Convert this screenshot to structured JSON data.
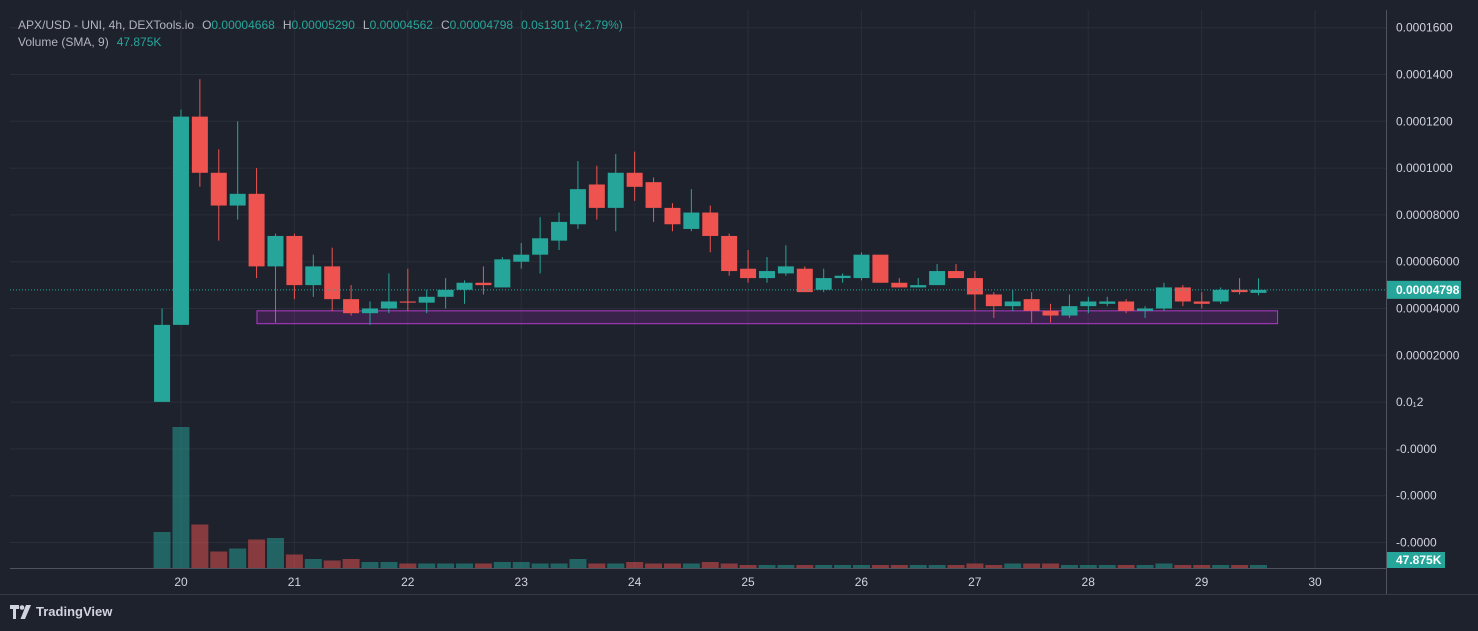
{
  "legend": {
    "symbol": "APX/USD - UNI, 4h, DEXTools.io",
    "o_label": "O",
    "o_value": "0.00004668",
    "h_label": "H",
    "h_value": "0.00005290",
    "l_label": "L",
    "l_value": "0.00004562",
    "c_label": "C",
    "c_value": "0.00004798",
    "change": "0.0s1301 (+2.79%)",
    "volume_label": "Volume (SMA, 9)",
    "volume_value": "47.875K"
  },
  "brand": {
    "name": "TradingView"
  },
  "price_axis": {
    "ticks": [
      "0.0001600",
      "0.0001400",
      "0.0001200",
      "0.0001000",
      "0.00008000",
      "0.00006000",
      "0.00004000",
      "0.00002000",
      "0.0₁2",
      "-0.0000",
      "-0.0000",
      "-0.0000"
    ],
    "last_price_label": "0.00004798",
    "volume_label": "47.875K"
  },
  "time_axis": {
    "ticks": [
      "20",
      "21",
      "22",
      "23",
      "24",
      "25",
      "26",
      "27",
      "28",
      "29",
      "30"
    ]
  },
  "colors": {
    "up": "#26a69a",
    "down": "#ef5350",
    "background": "#1e222d",
    "grid": "#2a2e39",
    "zone_fill": "#9c27b0",
    "zone_border": "#b03cc9"
  },
  "chart_data": {
    "type": "candlestick",
    "title": "APX/USD - UNI, 4h, DEXTools.io",
    "x_start_day": 19.833,
    "bar_interval_days": 0.1667,
    "ylim": [
      -7e-05,
      0.00017
    ],
    "candles": [
      {
        "o": 1e-07,
        "h": 4e-05,
        "l": 1e-07,
        "c": 3.3e-05
      },
      {
        "o": 3.3e-05,
        "h": 0.000125,
        "l": 3.3e-05,
        "c": 0.000122
      },
      {
        "o": 0.000122,
        "h": 0.000138,
        "l": 9.2e-05,
        "c": 9.8e-05
      },
      {
        "o": 9.8e-05,
        "h": 0.000108,
        "l": 6.9e-05,
        "c": 8.4e-05
      },
      {
        "o": 8.4e-05,
        "h": 0.00012,
        "l": 7.8e-05,
        "c": 8.9e-05
      },
      {
        "o": 8.9e-05,
        "h": 0.0001,
        "l": 5.3e-05,
        "c": 5.8e-05
      },
      {
        "o": 5.8e-05,
        "h": 7.2e-05,
        "l": 3.4e-05,
        "c": 7.1e-05
      },
      {
        "o": 7.1e-05,
        "h": 7.2e-05,
        "l": 4.4e-05,
        "c": 5e-05
      },
      {
        "o": 5e-05,
        "h": 6.3e-05,
        "l": 4.5e-05,
        "c": 5.8e-05
      },
      {
        "o": 5.8e-05,
        "h": 6.6e-05,
        "l": 3.9e-05,
        "c": 4.4e-05
      },
      {
        "o": 4.4e-05,
        "h": 5e-05,
        "l": 3.7e-05,
        "c": 3.8e-05
      },
      {
        "o": 3.8e-05,
        "h": 4.3e-05,
        "l": 3.3e-05,
        "c": 4e-05
      },
      {
        "o": 4e-05,
        "h": 5.5e-05,
        "l": 3.8e-05,
        "c": 4.3e-05
      },
      {
        "o": 4.3e-05,
        "h": 5.7e-05,
        "l": 3.9e-05,
        "c": 4.25e-05
      },
      {
        "o": 4.25e-05,
        "h": 4.8e-05,
        "l": 3.8e-05,
        "c": 4.5e-05
      },
      {
        "o": 4.5e-05,
        "h": 5.3e-05,
        "l": 4e-05,
        "c": 4.8e-05
      },
      {
        "o": 4.8e-05,
        "h": 5.2e-05,
        "l": 4.2e-05,
        "c": 5.1e-05
      },
      {
        "o": 5.1e-05,
        "h": 5.8e-05,
        "l": 4.6e-05,
        "c": 5e-05
      },
      {
        "o": 4.9e-05,
        "h": 6.2e-05,
        "l": 4.9e-05,
        "c": 6.1e-05
      },
      {
        "o": 6e-05,
        "h": 6.8e-05,
        "l": 5.7e-05,
        "c": 6.3e-05
      },
      {
        "o": 6.3e-05,
        "h": 7.9e-05,
        "l": 5.5e-05,
        "c": 7e-05
      },
      {
        "o": 6.9e-05,
        "h": 8.1e-05,
        "l": 6.5e-05,
        "c": 7.7e-05
      },
      {
        "o": 7.6e-05,
        "h": 0.000103,
        "l": 7.4e-05,
        "c": 9.1e-05
      },
      {
        "o": 9.3e-05,
        "h": 0.000101,
        "l": 7.8e-05,
        "c": 8.3e-05
      },
      {
        "o": 8.3e-05,
        "h": 0.000106,
        "l": 7.3e-05,
        "c": 9.8e-05
      },
      {
        "o": 9.8e-05,
        "h": 0.000107,
        "l": 8.6e-05,
        "c": 9.2e-05
      },
      {
        "o": 9.4e-05,
        "h": 9.6e-05,
        "l": 7.7e-05,
        "c": 8.3e-05
      },
      {
        "o": 8.3e-05,
        "h": 8.5e-05,
        "l": 7.3e-05,
        "c": 7.6e-05
      },
      {
        "o": 7.4e-05,
        "h": 9.1e-05,
        "l": 7.3e-05,
        "c": 8.1e-05
      },
      {
        "o": 8.1e-05,
        "h": 8.4e-05,
        "l": 6.4e-05,
        "c": 7.1e-05
      },
      {
        "o": 7.1e-05,
        "h": 7.2e-05,
        "l": 5.4e-05,
        "c": 5.6e-05
      },
      {
        "o": 5.7e-05,
        "h": 6.5e-05,
        "l": 5.1e-05,
        "c": 5.3e-05
      },
      {
        "o": 5.3e-05,
        "h": 6.2e-05,
        "l": 5.1e-05,
        "c": 5.6e-05
      },
      {
        "o": 5.5e-05,
        "h": 6.7e-05,
        "l": 5.4e-05,
        "c": 5.8e-05
      },
      {
        "o": 5.7e-05,
        "h": 5.8e-05,
        "l": 4.7e-05,
        "c": 4.7e-05
      },
      {
        "o": 4.8e-05,
        "h": 5.7e-05,
        "l": 4.7e-05,
        "c": 5.3e-05
      },
      {
        "o": 5.3e-05,
        "h": 5.5e-05,
        "l": 5.1e-05,
        "c": 5.4e-05
      },
      {
        "o": 5.3e-05,
        "h": 6.4e-05,
        "l": 5.2e-05,
        "c": 6.3e-05
      },
      {
        "o": 6.3e-05,
        "h": 6.3e-05,
        "l": 5.1e-05,
        "c": 5.1e-05
      },
      {
        "o": 5.1e-05,
        "h": 5.3e-05,
        "l": 4.9e-05,
        "c": 4.9e-05
      },
      {
        "o": 4.9e-05,
        "h": 5.3e-05,
        "l": 4.9e-05,
        "c": 5e-05
      },
      {
        "o": 5e-05,
        "h": 5.9e-05,
        "l": 5e-05,
        "c": 5.6e-05
      },
      {
        "o": 5.6e-05,
        "h": 5.9e-05,
        "l": 5.3e-05,
        "c": 5.3e-05
      },
      {
        "o": 5.3e-05,
        "h": 5.6e-05,
        "l": 3.9e-05,
        "c": 4.6e-05
      },
      {
        "o": 4.6e-05,
        "h": 4.7e-05,
        "l": 3.6e-05,
        "c": 4.1e-05
      },
      {
        "o": 4.1e-05,
        "h": 4.8e-05,
        "l": 3.9e-05,
        "c": 4.3e-05
      },
      {
        "o": 4.4e-05,
        "h": 4.7e-05,
        "l": 3.4e-05,
        "c": 3.9e-05
      },
      {
        "o": 3.9e-05,
        "h": 4.2e-05,
        "l": 3.4e-05,
        "c": 3.7e-05
      },
      {
        "o": 3.7e-05,
        "h": 4.6e-05,
        "l": 3.6e-05,
        "c": 4.1e-05
      },
      {
        "o": 4.1e-05,
        "h": 4.5e-05,
        "l": 3.8e-05,
        "c": 4.3e-05
      },
      {
        "o": 4.2e-05,
        "h": 4.5e-05,
        "l": 4.1e-05,
        "c": 4.3e-05
      },
      {
        "o": 4.3e-05,
        "h": 4.4e-05,
        "l": 3.8e-05,
        "c": 3.9e-05
      },
      {
        "o": 3.9e-05,
        "h": 4.1e-05,
        "l": 3.6e-05,
        "c": 4e-05
      },
      {
        "o": 4e-05,
        "h": 5.1e-05,
        "l": 3.9e-05,
        "c": 4.9e-05
      },
      {
        "o": 4.9e-05,
        "h": 5e-05,
        "l": 4.1e-05,
        "c": 4.3e-05
      },
      {
        "o": 4.3e-05,
        "h": 4.7e-05,
        "l": 4e-05,
        "c": 4.2e-05
      },
      {
        "o": 4.3e-05,
        "h": 4.9e-05,
        "l": 4.2e-05,
        "c": 4.8e-05
      },
      {
        "o": 4.8e-05,
        "h": 5.3e-05,
        "l": 4.6e-05,
        "c": 4.7e-05
      },
      {
        "o": 4.668e-05,
        "h": 5.29e-05,
        "l": 4.562e-05,
        "c": 4.798e-05
      }
    ],
    "volume_relative": [
      0.24,
      0.94,
      0.29,
      0.11,
      0.13,
      0.19,
      0.2,
      0.09,
      0.06,
      0.05,
      0.06,
      0.04,
      0.04,
      0.03,
      0.03,
      0.03,
      0.03,
      0.03,
      0.04,
      0.04,
      0.03,
      0.03,
      0.06,
      0.03,
      0.03,
      0.04,
      0.03,
      0.03,
      0.03,
      0.04,
      0.03,
      0.02,
      0.02,
      0.02,
      0.02,
      0.02,
      0.02,
      0.02,
      0.02,
      0.02,
      0.02,
      0.02,
      0.02,
      0.03,
      0.02,
      0.03,
      0.03,
      0.03,
      0.02,
      0.02,
      0.02,
      0.02,
      0.02,
      0.03,
      0.02,
      0.02,
      0.02,
      0.02,
      0.02
    ],
    "support_zone": {
      "x_start_day": 20.67,
      "x_end_day": 29.67,
      "y_low": 3.35e-05,
      "y_high": 3.9e-05
    },
    "last_price": 4.798e-05
  }
}
